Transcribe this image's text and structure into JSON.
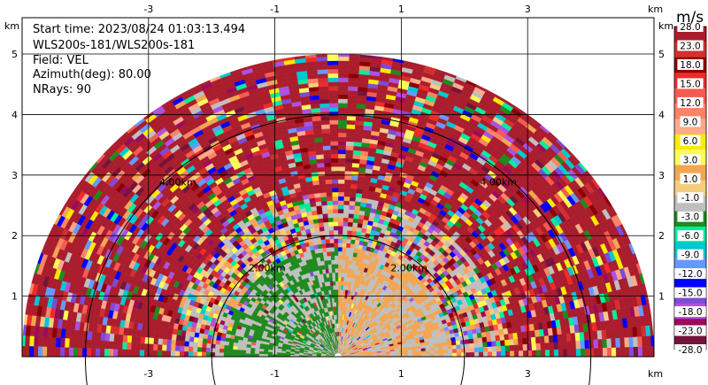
{
  "info": {
    "start_time": "Start time: 2023/08/24 01:03:13.494",
    "instrument": "WLS200s-181/WLS200s-181",
    "field": "Field: VEL",
    "azimuth": "Azimuth(deg): 80.00",
    "nrays": "NRays: 90"
  },
  "chart_data": {
    "type": "heatmap",
    "subtype": "ppi-sector",
    "xunit": "km",
    "yunit": "km",
    "xlim": [
      -5.0,
      5.0
    ],
    "ylim": [
      0,
      5.6
    ],
    "x_ticks": [
      "-3",
      "-1",
      "1",
      "3"
    ],
    "x_tick_values": [
      -3,
      -1,
      1,
      3
    ],
    "y_ticks": [
      "1",
      "2",
      "3",
      "4",
      "5"
    ],
    "y_tick_values": [
      1,
      2,
      3,
      4,
      5
    ],
    "grid": true,
    "range_rings_km": [
      2.0,
      4.0
    ],
    "range_ring_labels": [
      "2.00km",
      "4.00km"
    ],
    "max_range_km": 5.0,
    "colorbar": {
      "label": "m/s",
      "tick_labels": [
        "28.0",
        "23.0",
        "18.0",
        "15.0",
        "12.0",
        "9.0",
        "6.0",
        "3.0",
        "1.0",
        "-1.0",
        "-3.0",
        "-6.0",
        "-9.0",
        "-12.0",
        "-15.0",
        "-18.0",
        "-23.0",
        "-28.0"
      ],
      "colors": [
        "#aa1d2d",
        "#d2302f",
        "#8b0000",
        "#f02a2a",
        "#f55b4f",
        "#fa8466",
        "#fcaa8a",
        "#fcea00",
        "#fbfc56",
        "#f2a654",
        "#f5cd7f",
        "#bfbfbf",
        "#1f8a1f",
        "#00ee9c",
        "#00c8d0",
        "#6699ff",
        "#0000ff",
        "#7d4ad9",
        "#ab52e0",
        "#9b0b5b",
        "#75143a"
      ]
    }
  }
}
